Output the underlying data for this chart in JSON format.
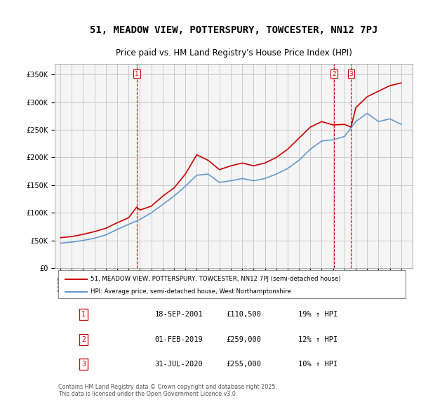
{
  "title": "51, MEADOW VIEW, POTTERSPURY, TOWCESTER, NN12 7PJ",
  "subtitle": "Price paid vs. HM Land Registry's House Price Index (HPI)",
  "legend_line1": "51, MEADOW VIEW, POTTERSPURY, TOWCESTER, NN12 7PJ (semi-detached house)",
  "legend_line2": "HPI: Average price, semi-detached house, West Northamptonshire",
  "footnote": "Contains HM Land Registry data © Crown copyright and database right 2025.\nThis data is licensed under the Open Government Licence v3.0.",
  "table": [
    {
      "num": "1",
      "date": "18-SEP-2001",
      "price": "£110,500",
      "change": "19% ↑ HPI"
    },
    {
      "num": "2",
      "date": "01-FEB-2019",
      "price": "£259,000",
      "change": "12% ↑ HPI"
    },
    {
      "num": "3",
      "date": "31-JUL-2020",
      "price": "£255,000",
      "change": "10% ↑ HPI"
    }
  ],
  "sale_dates": [
    2001.72,
    2019.08,
    2020.58
  ],
  "sale_prices": [
    110500,
    259000,
    255000
  ],
  "ylim": [
    0,
    370000
  ],
  "yticks": [
    0,
    50000,
    100000,
    150000,
    200000,
    250000,
    300000,
    350000
  ],
  "ytick_labels": [
    "£0",
    "£50K",
    "£100K",
    "£150K",
    "£200K",
    "£250K",
    "£300K",
    "£350K"
  ],
  "xlim": [
    1994.5,
    2026.0
  ],
  "xticks": [
    1995,
    1996,
    1997,
    1998,
    1999,
    2000,
    2001,
    2002,
    2003,
    2004,
    2005,
    2006,
    2007,
    2008,
    2009,
    2010,
    2011,
    2012,
    2013,
    2014,
    2015,
    2016,
    2017,
    2018,
    2019,
    2020,
    2021,
    2022,
    2023,
    2024,
    2025
  ],
  "red_color": "#cc0000",
  "blue_color": "#6699cc",
  "vline_color": "#cc0000",
  "grid_color": "#cccccc",
  "bg_color": "#ffffff",
  "plot_bg": "#f5f5f5",
  "hpi_base_year": 1995,
  "hpi_base_value": 45000,
  "red_series_x": [
    1995,
    1996,
    1997,
    1998,
    1999,
    2000,
    2001,
    2001.72,
    2002,
    2003,
    2004,
    2005,
    2006,
    2007,
    2008,
    2009,
    2010,
    2011,
    2012,
    2013,
    2014,
    2015,
    2016,
    2017,
    2018,
    2019,
    2019.08,
    2020,
    2020.58,
    2021,
    2022,
    2023,
    2024,
    2025
  ],
  "red_series_y": [
    55000,
    57000,
    61000,
    66000,
    72000,
    82000,
    91000,
    110500,
    105000,
    112000,
    130000,
    145000,
    170000,
    205000,
    195000,
    178000,
    185000,
    190000,
    185000,
    190000,
    200000,
    215000,
    235000,
    255000,
    265000,
    259000,
    259000,
    260000,
    255000,
    290000,
    310000,
    320000,
    330000,
    335000
  ],
  "blue_series_x": [
    1995,
    1996,
    1997,
    1998,
    1999,
    2000,
    2001,
    2002,
    2003,
    2004,
    2005,
    2006,
    2007,
    2008,
    2009,
    2010,
    2011,
    2012,
    2013,
    2014,
    2015,
    2016,
    2017,
    2018,
    2019,
    2020,
    2021,
    2022,
    2023,
    2024,
    2025
  ],
  "blue_series_y": [
    45000,
    47000,
    50000,
    54000,
    60000,
    70000,
    79000,
    88000,
    100000,
    115000,
    130000,
    148000,
    168000,
    170000,
    155000,
    158000,
    162000,
    158000,
    162000,
    170000,
    180000,
    195000,
    215000,
    230000,
    232000,
    238000,
    265000,
    280000,
    265000,
    270000,
    260000
  ]
}
